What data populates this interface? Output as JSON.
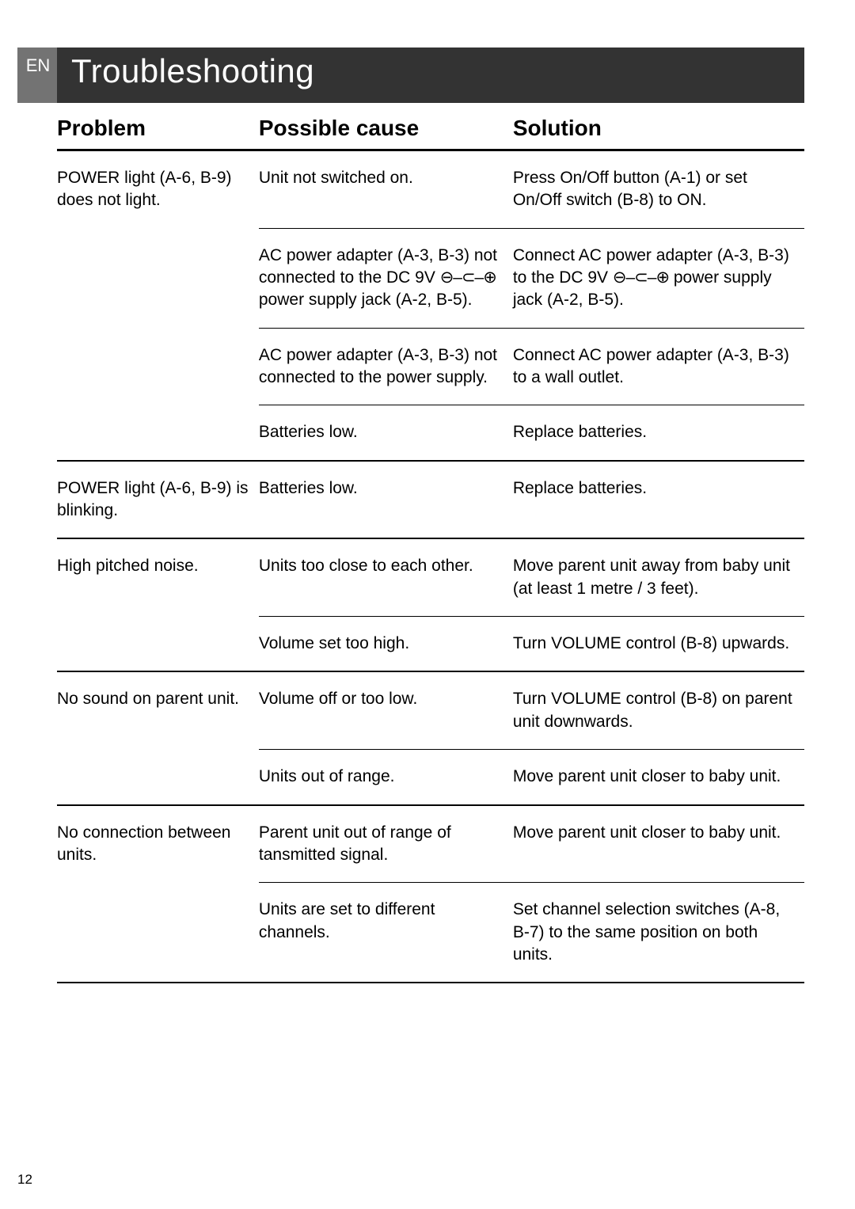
{
  "page_number": "12",
  "lang_tab": "EN",
  "title": "Troubleshooting",
  "columns": {
    "problem": "Problem",
    "cause": "Possible cause",
    "solution": "Solution"
  },
  "polarity_symbol": "⊖–⊂–⊕",
  "groups": [
    {
      "problem": "POWER light (A-6, B-9) does not light.",
      "rows": [
        {
          "cause": "Unit not switched on.",
          "solution": "Press On/Off button (A-1) or set On/Off switch (B-8) to ON."
        },
        {
          "cause_pre": "AC power adapter (A-3, B-3) not connected to the DC 9V ",
          "cause_post": " power supply jack (A-2, B-5).",
          "solution_pre": "Connect AC power adapter (A-3, B-3) to the DC 9V ",
          "solution_post": " power supply jack (A-2, B-5).",
          "has_symbol": true
        },
        {
          "cause": "AC power adapter (A-3, B-3) not connected to the power supply.",
          "solution": "Connect AC power adapter (A-3, B-3) to a wall outlet."
        },
        {
          "cause": "Batteries low.",
          "solution": "Replace batteries."
        }
      ]
    },
    {
      "problem": "POWER light (A-6, B-9) is blinking.",
      "rows": [
        {
          "cause": "Batteries low.",
          "solution": "Replace batteries."
        }
      ]
    },
    {
      "problem": "High pitched noise.",
      "rows": [
        {
          "cause": "Units too close to each other.",
          "solution": "Move parent unit away from baby unit (at least 1 metre / 3 feet)."
        },
        {
          "cause": "Volume set too high.",
          "solution": "Turn VOLUME control (B-8) upwards."
        }
      ]
    },
    {
      "problem": "No sound on parent unit.",
      "rows": [
        {
          "cause": "Volume off or too low.",
          "solution": "Turn VOLUME control (B-8) on parent unit downwards."
        },
        {
          "cause": "Units out of range.",
          "solution": "Move parent unit closer to baby unit."
        }
      ]
    },
    {
      "problem": "No connection between units.",
      "rows": [
        {
          "cause": "Parent unit out of range of tansmitted signal.",
          "solution": "Move parent unit closer to baby unit."
        },
        {
          "cause": "Units are set to different channels.",
          "solution": "Set channel selection switches (A-8, B-7) to the same position on both units."
        }
      ]
    }
  ]
}
